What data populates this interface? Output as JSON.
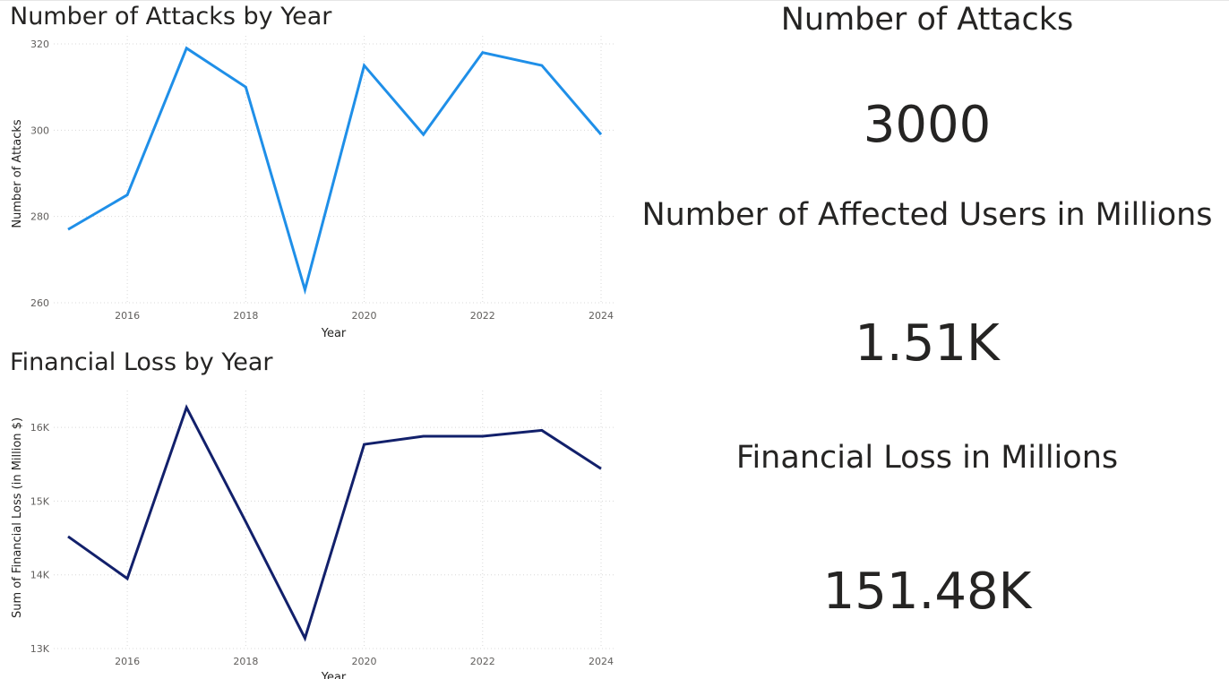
{
  "chart_data": [
    {
      "type": "line",
      "title": "Number of Attacks by Year",
      "xlabel": "Year",
      "ylabel": "Number of Attacks",
      "x": [
        2015,
        2016,
        2017,
        2018,
        2019,
        2020,
        2021,
        2022,
        2023,
        2024
      ],
      "x_ticks": [
        2016,
        2018,
        2020,
        2022,
        2024
      ],
      "y_ticks": [
        260,
        280,
        300,
        320
      ],
      "y_tick_labels": [
        "260",
        "280",
        "300",
        "320"
      ],
      "values": [
        277,
        285,
        319,
        310,
        263,
        315,
        299,
        318,
        315,
        299
      ],
      "xlim": [
        2015,
        2024
      ],
      "ylim": [
        260,
        320
      ],
      "grid": true,
      "color": "#1f8fe8"
    },
    {
      "type": "line",
      "title": "Financial Loss by Year",
      "xlabel": "Year",
      "ylabel": "Sum of Financial Loss (in Million $)",
      "x": [
        2015,
        2016,
        2017,
        2018,
        2019,
        2020,
        2021,
        2022,
        2023,
        2024
      ],
      "x_ticks": [
        2016,
        2018,
        2020,
        2022,
        2024
      ],
      "y_ticks": [
        13000,
        14000,
        15000,
        16000
      ],
      "y_tick_labels": [
        "13K",
        "14K",
        "15K",
        "16K"
      ],
      "values": [
        14520,
        13950,
        16270,
        14720,
        13140,
        15770,
        15880,
        15880,
        15960,
        15440
      ],
      "xlim": [
        2015,
        2024
      ],
      "ylim": [
        13000,
        16500
      ],
      "grid": true,
      "color": "#12206b"
    }
  ],
  "kpis": [
    {
      "title": "Number of Attacks",
      "value": "3000"
    },
    {
      "title": "Number of Affected Users in Millions",
      "value": "1.51K"
    },
    {
      "title": "Financial Loss in Millions",
      "value": "151.48K"
    }
  ]
}
